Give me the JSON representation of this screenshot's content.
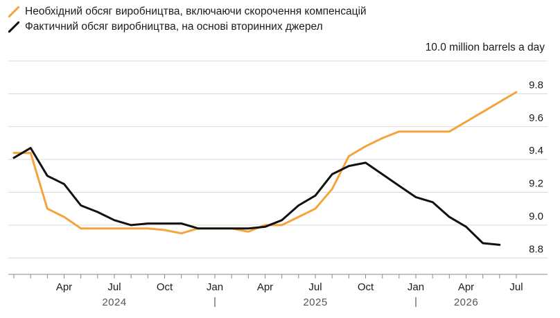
{
  "chart_data": {
    "type": "line",
    "unit_label": "10.0 million barrels a day",
    "ylim": [
      8.7,
      10.0
    ],
    "y_ticks": [
      8.8,
      9.0,
      9.2,
      9.4,
      9.6,
      9.8
    ],
    "y_tick_labels": [
      "8.8",
      "9.0",
      "9.2",
      "9.4",
      "9.6",
      "9.8"
    ],
    "grid": true,
    "legend_placement": "top-left",
    "x_start": "2024-01",
    "x_end": "2026-07",
    "x_tick_labels": [
      {
        "month": "2024-04",
        "label": "Apr"
      },
      {
        "month": "2024-07",
        "label": "Jul"
      },
      {
        "month": "2024-10",
        "label": "Oct"
      },
      {
        "month": "2025-01",
        "label": "Jan"
      },
      {
        "month": "2025-04",
        "label": "Apr"
      },
      {
        "month": "2025-07",
        "label": "Jul"
      },
      {
        "month": "2025-10",
        "label": "Oct"
      },
      {
        "month": "2026-01",
        "label": "Jan"
      },
      {
        "month": "2026-04",
        "label": "Apr"
      },
      {
        "month": "2026-07",
        "label": "Jul"
      }
    ],
    "years": [
      {
        "label": "2024",
        "center_month": "2024-07"
      },
      {
        "label": "2025",
        "center_month": "2025-07"
      },
      {
        "label": "2026",
        "center_month": "2026-04"
      }
    ],
    "series": [
      {
        "name": "Необхідний обсяг виробництва, включаючи скорочення компенсацій",
        "color": "#f5a33b",
        "points": [
          [
            "2024-01",
            9.44
          ],
          [
            "2024-02",
            9.44
          ],
          [
            "2024-03",
            9.1
          ],
          [
            "2024-04",
            9.05
          ],
          [
            "2024-05",
            8.98
          ],
          [
            "2024-06",
            8.98
          ],
          [
            "2024-07",
            8.98
          ],
          [
            "2024-08",
            8.98
          ],
          [
            "2024-09",
            8.98
          ],
          [
            "2024-10",
            8.97
          ],
          [
            "2024-11",
            8.95
          ],
          [
            "2024-12",
            8.98
          ],
          [
            "2025-01",
            8.98
          ],
          [
            "2025-02",
            8.98
          ],
          [
            "2025-03",
            8.96
          ],
          [
            "2025-04",
            9.0
          ],
          [
            "2025-05",
            9.0
          ],
          [
            "2025-06",
            9.05
          ],
          [
            "2025-07",
            9.1
          ],
          [
            "2025-08",
            9.22
          ],
          [
            "2025-09",
            9.42
          ],
          [
            "2025-10",
            9.48
          ],
          [
            "2025-11",
            9.53
          ],
          [
            "2025-12",
            9.57
          ],
          [
            "2026-01",
            9.57
          ],
          [
            "2026-02",
            9.57
          ],
          [
            "2026-03",
            9.57
          ],
          [
            "2026-04",
            9.63
          ],
          [
            "2026-05",
            9.69
          ],
          [
            "2026-06",
            9.75
          ],
          [
            "2026-07",
            9.81
          ]
        ]
      },
      {
        "name": "Фактичний обсяг виробництва, на основі вторинних джерел",
        "color": "#111111",
        "points": [
          [
            "2024-01",
            9.41
          ],
          [
            "2024-02",
            9.47
          ],
          [
            "2024-03",
            9.3
          ],
          [
            "2024-04",
            9.25
          ],
          [
            "2024-05",
            9.12
          ],
          [
            "2024-06",
            9.08
          ],
          [
            "2024-07",
            9.03
          ],
          [
            "2024-08",
            9.0
          ],
          [
            "2024-09",
            9.01
          ],
          [
            "2024-10",
            9.01
          ],
          [
            "2024-11",
            9.01
          ],
          [
            "2024-12",
            8.98
          ],
          [
            "2025-01",
            8.98
          ],
          [
            "2025-02",
            8.98
          ],
          [
            "2025-03",
            8.98
          ],
          [
            "2025-04",
            8.99
          ],
          [
            "2025-05",
            9.03
          ],
          [
            "2025-06",
            9.12
          ],
          [
            "2025-07",
            9.18
          ],
          [
            "2025-08",
            9.31
          ],
          [
            "2025-09",
            9.36
          ],
          [
            "2025-10",
            9.38
          ],
          [
            "2025-11",
            9.31
          ],
          [
            "2025-12",
            9.24
          ],
          [
            "2026-01",
            9.17
          ],
          [
            "2026-02",
            9.14
          ],
          [
            "2026-03",
            9.05
          ],
          [
            "2026-04",
            8.99
          ],
          [
            "2026-05",
            8.89
          ],
          [
            "2026-06",
            8.88
          ]
        ]
      }
    ]
  }
}
